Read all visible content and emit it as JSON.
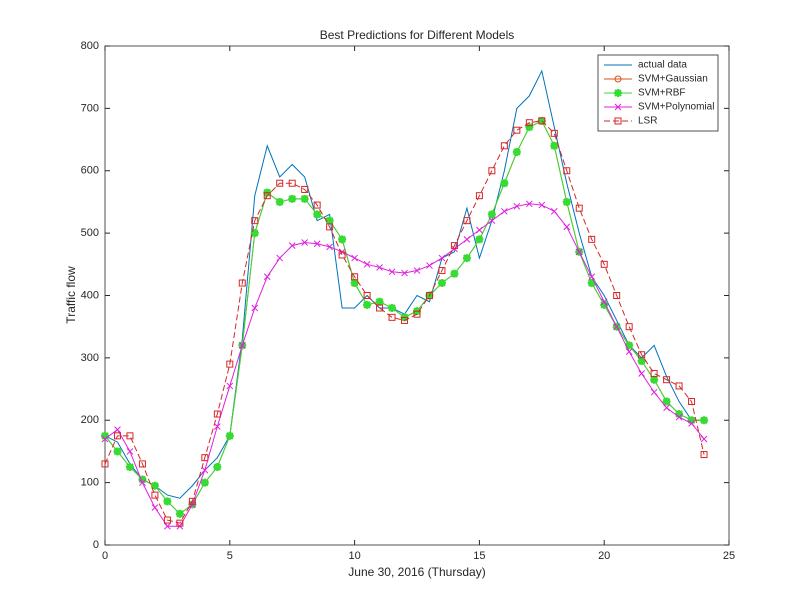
{
  "chart_data": {
    "type": "line",
    "title": "Best Predictions for Different Models",
    "xlabel": "June 30, 2016 (Thursday)",
    "ylabel": "Traffic flow",
    "x": [
      0,
      0.5,
      1,
      1.5,
      2,
      2.5,
      3,
      3.5,
      4,
      4.5,
      5,
      5.5,
      6,
      6.5,
      7,
      7.5,
      8,
      8.5,
      9,
      9.5,
      10,
      10.5,
      11,
      11.5,
      12,
      12.5,
      13,
      13.5,
      14,
      14.5,
      15,
      15.5,
      16,
      16.5,
      17,
      17.5,
      18,
      18.5,
      19,
      19.5,
      20,
      20.5,
      21,
      21.5,
      22,
      22.5,
      23,
      23.5,
      24
    ],
    "xlim": [
      0,
      25
    ],
    "xticks": [
      0,
      5,
      10,
      15,
      20,
      25
    ],
    "ylim": [
      0,
      800
    ],
    "yticks": [
      0,
      100,
      200,
      300,
      400,
      500,
      600,
      700,
      800
    ],
    "legend": "top-right",
    "series": [
      {
        "name": "actual data",
        "color": "#0072bd",
        "marker": "none",
        "dash": "solid",
        "values": [
          175,
          165,
          130,
          105,
          95,
          80,
          75,
          95,
          120,
          140,
          175,
          330,
          560,
          640,
          590,
          610,
          590,
          520,
          530,
          380,
          380,
          400,
          380,
          380,
          370,
          400,
          390,
          460,
          470,
          540,
          460,
          520,
          600,
          700,
          720,
          760,
          670,
          580,
          500,
          430,
          400,
          360,
          320,
          300,
          320,
          270,
          230,
          200,
          200
        ]
      },
      {
        "name": "SVM+Gaussian",
        "color": "#d95319",
        "marker": "circle",
        "dash": "solid",
        "values": [
          175,
          150,
          125,
          105,
          95,
          70,
          50,
          65,
          100,
          125,
          175,
          320,
          500,
          565,
          550,
          555,
          555,
          530,
          520,
          490,
          420,
          385,
          390,
          380,
          365,
          375,
          400,
          420,
          435,
          460,
          490,
          530,
          580,
          630,
          670,
          680,
          640,
          550,
          470,
          420,
          385,
          350,
          320,
          295,
          265,
          230,
          210,
          200,
          200
        ]
      },
      {
        "name": "SVM+RBF",
        "color": "#33dd33",
        "marker": "asterisk",
        "dash": "solid",
        "values": [
          175,
          150,
          125,
          105,
          95,
          70,
          50,
          65,
          100,
          125,
          175,
          320,
          500,
          565,
          550,
          555,
          555,
          530,
          520,
          490,
          420,
          385,
          390,
          380,
          365,
          375,
          400,
          420,
          435,
          460,
          490,
          530,
          580,
          630,
          670,
          680,
          640,
          550,
          470,
          420,
          385,
          350,
          320,
          295,
          265,
          230,
          210,
          200,
          200
        ]
      },
      {
        "name": "SVM+Polynomial",
        "color": "#e020e0",
        "marker": "x",
        "dash": "solid",
        "values": [
          170,
          185,
          150,
          100,
          60,
          30,
          30,
          65,
          120,
          190,
          255,
          320,
          380,
          430,
          460,
          480,
          485,
          483,
          478,
          470,
          460,
          450,
          445,
          438,
          436,
          440,
          448,
          460,
          475,
          490,
          505,
          520,
          535,
          543,
          547,
          545,
          535,
          510,
          470,
          430,
          390,
          350,
          310,
          275,
          245,
          220,
          205,
          195,
          170
        ]
      },
      {
        "name": "LSR",
        "color": "#d62728",
        "marker": "square",
        "dash": "dashed",
        "values": [
          130,
          175,
          175,
          130,
          80,
          40,
          35,
          70,
          140,
          210,
          290,
          420,
          520,
          560,
          580,
          580,
          570,
          545,
          510,
          465,
          430,
          400,
          380,
          365,
          360,
          370,
          400,
          440,
          480,
          520,
          560,
          600,
          640,
          665,
          677,
          680,
          660,
          600,
          540,
          490,
          450,
          400,
          350,
          305,
          275,
          265,
          255,
          230,
          145
        ]
      }
    ]
  }
}
